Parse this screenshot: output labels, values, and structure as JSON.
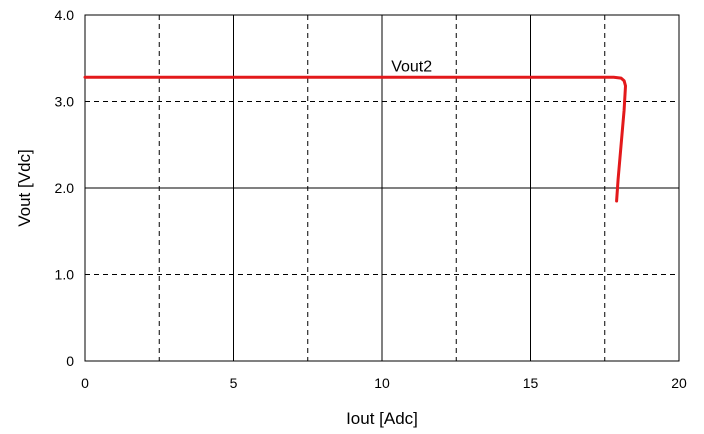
{
  "chart_data": {
    "type": "line",
    "title": "",
    "xlabel": "Iout [Adc]",
    "ylabel": "Vout [Vdc]",
    "xlim": [
      0,
      20
    ],
    "ylim": [
      0,
      4.0
    ],
    "x_ticks": [
      0,
      5,
      10,
      15,
      20
    ],
    "x_tick_labels": [
      "0",
      "5",
      "10",
      "15",
      "20"
    ],
    "x_minor_dashed": [
      2.5,
      7.5,
      12.5,
      17.5
    ],
    "y_ticks": [
      0,
      1.0,
      2.0,
      3.0,
      4.0
    ],
    "y_tick_labels": [
      "0",
      "1.0",
      "2.0",
      "3.0",
      "4.0"
    ],
    "y_minor_dashed": [
      1.0,
      3.0
    ],
    "grid": true,
    "series": [
      {
        "name": "Vout2",
        "color": "#e3191b",
        "x": [
          0,
          5,
          10,
          15,
          17.8,
          18.05,
          18.15,
          18.2,
          18.15,
          18.05,
          17.95,
          17.9
        ],
        "y": [
          3.28,
          3.28,
          3.28,
          3.28,
          3.28,
          3.27,
          3.24,
          3.18,
          2.9,
          2.5,
          2.1,
          1.85
        ]
      }
    ],
    "series_label_at": {
      "x": 11.0,
      "y": 3.28
    }
  }
}
